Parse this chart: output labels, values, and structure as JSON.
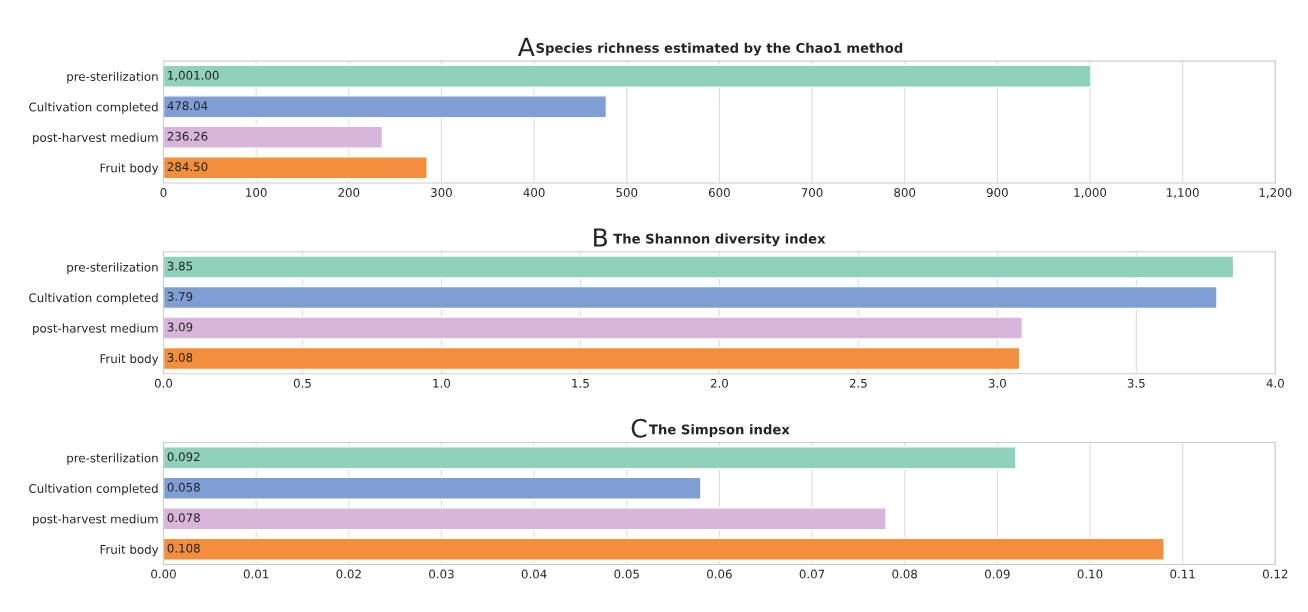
{
  "chart_data": [
    {
      "type": "bar",
      "orientation": "horizontal",
      "title": "Species richness estimated by the Chao1 method",
      "annotations": [
        "A"
      ],
      "categories": [
        "pre-sterilization",
        "Cultivation completed",
        "post-harvest medium",
        "Fruit body"
      ],
      "values": [
        1001.0,
        478.04,
        236.26,
        284.5
      ],
      "value_labels": [
        "1,001.00",
        "478.04",
        "236.26",
        "284.50"
      ],
      "colors": [
        "#8fd1bb",
        "#7f9fd4",
        "#d8b6da",
        "#f28e3c"
      ],
      "xlim": [
        0,
        1200
      ],
      "xticks": [
        0,
        100,
        200,
        300,
        400,
        500,
        600,
        700,
        800,
        900,
        {
          "value": 1000,
          "label": "1,000"
        },
        {
          "value": 1100,
          "label": "1,100"
        },
        {
          "value": 1200,
          "label": "1,200"
        }
      ],
      "grid": "x"
    },
    {
      "type": "bar",
      "orientation": "horizontal",
      "title": "The Shannon diversity index",
      "annotations": [
        "B"
      ],
      "categories": [
        "pre-sterilization",
        "Cultivation completed",
        "post-harvest medium",
        "Fruit body"
      ],
      "values": [
        3.85,
        3.79,
        3.09,
        3.08
      ],
      "value_labels": [
        "3.85",
        "3.79",
        "3.09",
        "3.08"
      ],
      "colors": [
        "#8fd1bb",
        "#7f9fd4",
        "#d8b6da",
        "#f28e3c"
      ],
      "xlim": [
        0,
        4
      ],
      "xticks": [
        {
          "value": 0,
          "label": "0.0"
        },
        0.5,
        {
          "value": 1,
          "label": "1.0"
        },
        1.5,
        {
          "value": 2,
          "label": "2.0"
        },
        2.5,
        {
          "value": 3,
          "label": "3.0"
        },
        3.5,
        {
          "value": 4,
          "label": "4.0"
        }
      ],
      "grid": "x"
    },
    {
      "type": "bar",
      "orientation": "horizontal",
      "title": "The Simpson index",
      "annotations": [
        "C"
      ],
      "categories": [
        "pre-sterilization",
        "Cultivation completed",
        "post-harvest medium",
        "Fruit body"
      ],
      "values": [
        0.092,
        0.058,
        0.078,
        0.108
      ],
      "value_labels": [
        "0.092",
        "0.058",
        "0.078",
        "0.108"
      ],
      "colors": [
        "#8fd1bb",
        "#7f9fd4",
        "#d8b6da",
        "#f28e3c"
      ],
      "xlim": [
        0,
        0.12
      ],
      "xticks": [
        {
          "value": 0,
          "label": "0.00"
        },
        0.01,
        0.02,
        0.03,
        0.04,
        0.05,
        0.06,
        0.07,
        0.08,
        0.09,
        {
          "value": 0.1,
          "label": "0.10"
        },
        0.11,
        0.12
      ],
      "grid": "x"
    }
  ]
}
